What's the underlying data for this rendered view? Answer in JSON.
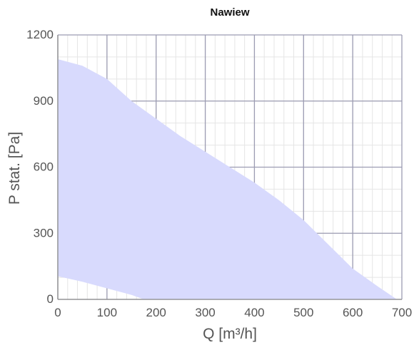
{
  "chart_data": {
    "type": "area",
    "title": "Nawiew",
    "xlabel": "Q [m³/h]",
    "ylabel": "P stat. [Pa]",
    "xlim": [
      0,
      700
    ],
    "ylim": [
      0,
      1200
    ],
    "x_ticks": [
      "0",
      "100",
      "200",
      "300",
      "400",
      "500",
      "600",
      "700"
    ],
    "y_ticks": [
      "0",
      "300",
      "600",
      "900",
      "1200"
    ],
    "grid": true,
    "colors": {
      "fill": "#d8dafd",
      "major_grid": "#9c9cb2",
      "minor_grid": "#e5e5e5",
      "text": "#555555"
    },
    "series": [
      {
        "upper": [
          [
            0,
            1090
          ],
          [
            50,
            1060
          ],
          [
            100,
            1000
          ],
          [
            150,
            900
          ],
          [
            200,
            820
          ],
          [
            250,
            740
          ],
          [
            300,
            670
          ],
          [
            350,
            600
          ],
          [
            400,
            530
          ],
          [
            450,
            450
          ],
          [
            500,
            360
          ],
          [
            550,
            250
          ],
          [
            600,
            140
          ],
          [
            650,
            60
          ],
          [
            690,
            0
          ]
        ],
        "lower": [
          [
            0,
            105
          ],
          [
            50,
            80
          ],
          [
            100,
            50
          ],
          [
            150,
            20
          ],
          [
            175,
            0
          ]
        ]
      }
    ]
  }
}
